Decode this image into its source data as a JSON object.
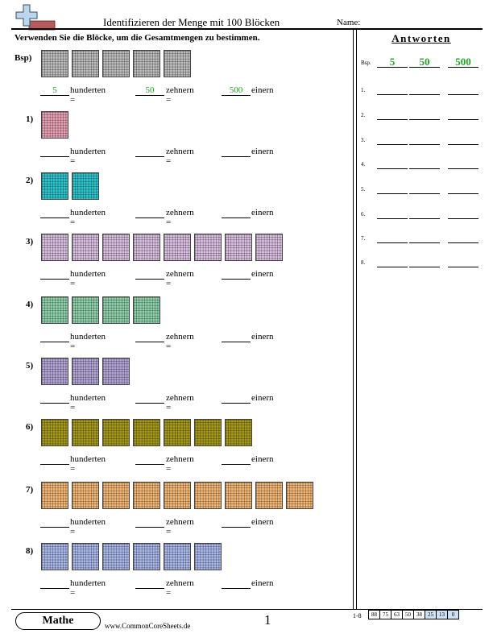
{
  "header": {
    "title": "Identifizieren der Menge mit 100 Blöcken",
    "name_label": "Name:"
  },
  "instructions": "Verwenden Sie die Blöcke, um die Gesamtmengen zu bestimmen.",
  "labels": {
    "hundreds": "hunderten =",
    "tens": "zehnern =",
    "ones": "einern"
  },
  "problems": [
    {
      "label": "Bsp)",
      "blocks": 5,
      "color": "#bdbdbd",
      "answers": [
        "5",
        "50",
        "500"
      ]
    },
    {
      "label": "1)",
      "blocks": 1,
      "color": "#e8a0b4",
      "answers": [
        "",
        "",
        ""
      ]
    },
    {
      "label": "2)",
      "blocks": 2,
      "color": "#2ec4cc",
      "answers": [
        "",
        "",
        ""
      ]
    },
    {
      "label": "3)",
      "blocks": 8,
      "color": "#d9bfe0",
      "answers": [
        "",
        "",
        ""
      ]
    },
    {
      "label": "4)",
      "blocks": 4,
      "color": "#8fd1aa",
      "answers": [
        "",
        "",
        ""
      ]
    },
    {
      "label": "5)",
      "blocks": 3,
      "color": "#b3a4d6",
      "answers": [
        "",
        "",
        ""
      ]
    },
    {
      "label": "6)",
      "blocks": 7,
      "color": "#a69a1a",
      "answers": [
        "",
        "",
        ""
      ]
    },
    {
      "label": "7)",
      "blocks": 9,
      "color": "#f3b775",
      "answers": [
        "",
        "",
        ""
      ]
    },
    {
      "label": "8)",
      "blocks": 6,
      "color": "#aab8ea",
      "answers": [
        "",
        "",
        ""
      ]
    }
  ],
  "answer_key": {
    "title": "Antworten",
    "rows": [
      {
        "label": "Bsp.",
        "values": [
          "5",
          "50",
          "500"
        ]
      },
      {
        "label": "1.",
        "values": [
          "",
          "",
          ""
        ]
      },
      {
        "label": "2.",
        "values": [
          "",
          "",
          ""
        ]
      },
      {
        "label": "3.",
        "values": [
          "",
          "",
          ""
        ]
      },
      {
        "label": "4.",
        "values": [
          "",
          "",
          ""
        ]
      },
      {
        "label": "5.",
        "values": [
          "",
          "",
          ""
        ]
      },
      {
        "label": "6.",
        "values": [
          "",
          "",
          ""
        ]
      },
      {
        "label": "7.",
        "values": [
          "",
          "",
          ""
        ]
      },
      {
        "label": "8.",
        "values": [
          "",
          "",
          ""
        ]
      }
    ]
  },
  "footer": {
    "badge": "Mathe",
    "url": "www.CommonCoreSheets.de",
    "page": "1",
    "score_label": "1-8",
    "scores": [
      "88",
      "75",
      "63",
      "50",
      "38",
      "25",
      "13",
      "0"
    ],
    "score_highlight_color": "#cfe0f5"
  }
}
